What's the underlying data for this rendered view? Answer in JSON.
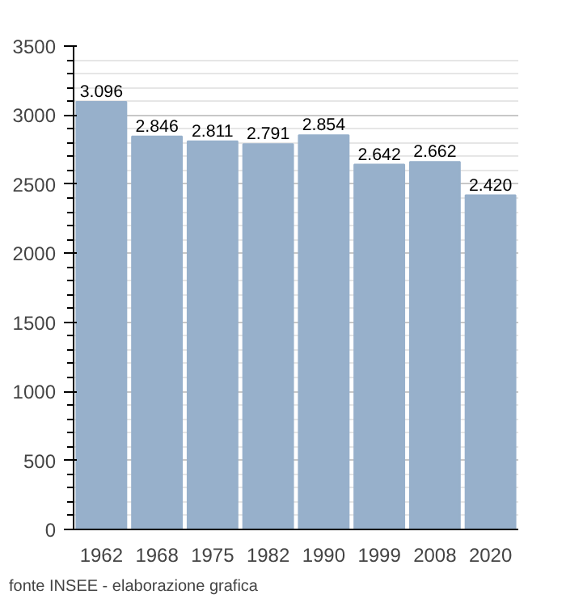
{
  "chart_data": {
    "type": "bar",
    "categories": [
      "1962",
      "1968",
      "1975",
      "1982",
      "1990",
      "1999",
      "2008",
      "2020"
    ],
    "values": [
      3096,
      2846,
      2811,
      2791,
      2854,
      2642,
      2662,
      2420
    ],
    "value_labels": [
      "3.096",
      "2.846",
      "2.811",
      "2.791",
      "2.854",
      "2.642",
      "2.662",
      "2.420"
    ],
    "color": "#97b0cb",
    "ylim": [
      0,
      3500
    ],
    "yticks": [
      0,
      500,
      1000,
      1500,
      2000,
      2500,
      3000,
      3500
    ],
    "grid": "y",
    "annotations": [
      "fonte INSEE - elaborazione grafica"
    ]
  }
}
